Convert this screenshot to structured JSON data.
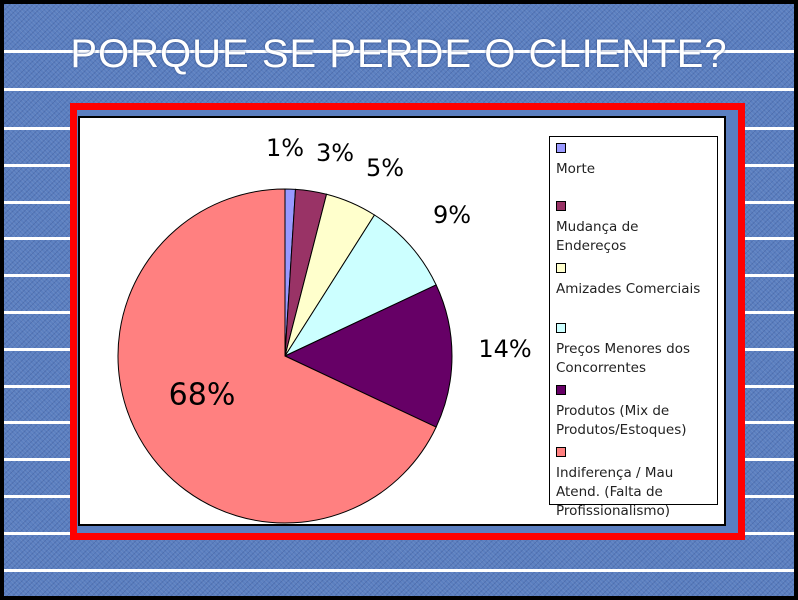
{
  "title": "PORQUE SE PERDE O CLIENTE?",
  "chart_data": {
    "type": "pie",
    "title": "",
    "start_angle": "top",
    "direction": "clockwise",
    "legend_placement": "right",
    "slices": [
      {
        "label": "Morte",
        "value": 1,
        "data_label": "1%",
        "color": "#9999ff"
      },
      {
        "label": "Mudança de Endereços",
        "value": 3,
        "data_label": "3%",
        "color": "#993366"
      },
      {
        "label": "Amizades Comerciais",
        "value": 5,
        "data_label": "5%",
        "color": "#ffffcc"
      },
      {
        "label": "Preços Menores dos Concorrentes",
        "value": 9,
        "data_label": "9%",
        "color": "#ccffff"
      },
      {
        "label": "Produtos (Mix de Produtos/Estoques)",
        "value": 14,
        "data_label": "14%",
        "color": "#660066"
      },
      {
        "label": "Indiferença / Mau Atend.  (Falta de Profissionalismo)",
        "value": 68,
        "data_label": "68%",
        "color": "#ff8080"
      }
    ]
  }
}
